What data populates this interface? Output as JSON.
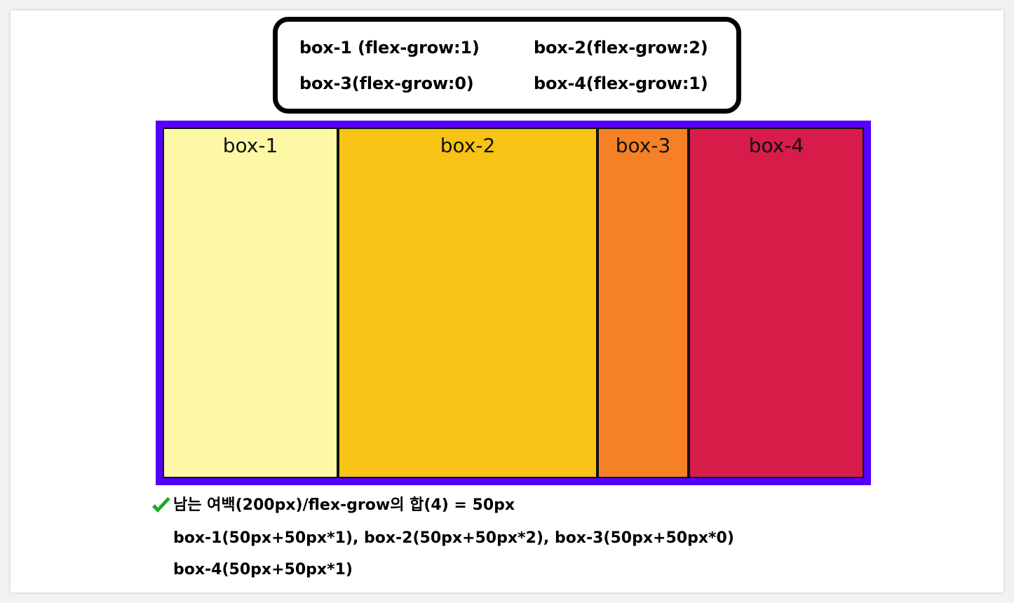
{
  "legend": {
    "items": [
      "box-1 (flex-grow:1)",
      "box-2(flex-grow:2)",
      "box-3(flex-grow:0)",
      "box-4(flex-grow:1)"
    ]
  },
  "boxes": [
    {
      "label": "box-1",
      "color": "#fdf8a6"
    },
    {
      "label": "box-2",
      "color": "#f8c315"
    },
    {
      "label": "box-3",
      "color": "#f58025"
    },
    {
      "label": "box-4",
      "color": "#d71c4a"
    }
  ],
  "container": {
    "border_color": "#5500ff"
  },
  "explanation": {
    "check_icon": "check-mark-icon",
    "check_color": "#22aa22",
    "line1": "남는 여백(200px)/flex-grow의 합(4)  =  50px",
    "line2": "box-1(50px+50px*1),  box-2(50px+50px*2), box-3(50px+50px*0)",
    "line3": "box-4(50px+50px*1)"
  }
}
